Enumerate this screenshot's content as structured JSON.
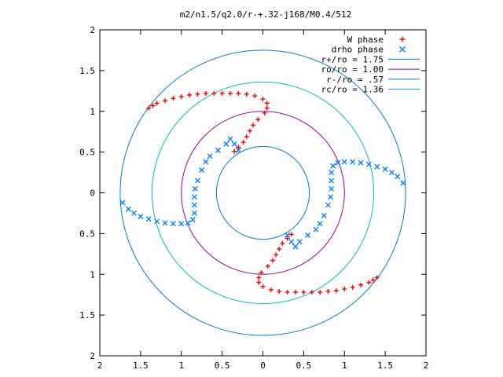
{
  "chart_data": {
    "type": "scatter",
    "title": "m2/n1.5/q2.0/r-+.32-j168/M0.4/512",
    "xlim": [
      -2,
      2
    ],
    "ylim": [
      -2,
      2
    ],
    "x_tick_values": [
      -2,
      -1.5,
      -1,
      -0.5,
      0,
      0.5,
      1,
      1.5,
      2
    ],
    "x_tick_labels": [
      "2",
      "1.5",
      "1",
      "0.5",
      "0",
      "0.5",
      "1",
      "1.5",
      "2"
    ],
    "y_tick_values": [
      2,
      1.5,
      1,
      0.5,
      0,
      -0.5,
      -1,
      -1.5,
      -2
    ],
    "y_tick_labels": [
      "2",
      "1.5",
      "1",
      "0.5",
      "0",
      "0.5",
      "1",
      "1.5",
      "2"
    ],
    "grid": false,
    "legend_position": "top-right",
    "circles": [
      {
        "label": "r+/ro = 1.75",
        "radius": 1.75,
        "color": "#0080c0"
      },
      {
        "label": "ro/ro = 1.00",
        "radius": 1.0,
        "color": "#a000a0"
      },
      {
        "label": "r-/ro = .57",
        "radius": 0.57,
        "color": "#0080c0"
      },
      {
        "label": "rc/ro = 1.36",
        "radius": 1.36,
        "color": "#00c0c0"
      }
    ],
    "series": [
      {
        "name": "W phase",
        "marker": "plus",
        "color": "#ff0000",
        "points": [
          [
            1.4,
            -1.04
          ],
          [
            1.35,
            -1.07
          ],
          [
            1.3,
            -1.1
          ],
          [
            1.2,
            -1.13
          ],
          [
            1.1,
            -1.16
          ],
          [
            1.0,
            -1.18
          ],
          [
            0.9,
            -1.2
          ],
          [
            0.8,
            -1.21
          ],
          [
            0.7,
            -1.22
          ],
          [
            0.6,
            -1.22
          ],
          [
            0.5,
            -1.22
          ],
          [
            0.4,
            -1.22
          ],
          [
            0.3,
            -1.22
          ],
          [
            0.2,
            -1.21
          ],
          [
            0.1,
            -1.19
          ],
          [
            0.0,
            -1.15
          ],
          [
            -0.05,
            -1.1
          ],
          [
            -0.05,
            -1.04
          ],
          [
            -0.02,
            -0.98
          ],
          [
            0.06,
            -0.9
          ],
          [
            0.12,
            -0.83
          ],
          [
            0.16,
            -0.76
          ],
          [
            0.2,
            -0.69
          ],
          [
            0.24,
            -0.62
          ],
          [
            0.3,
            -0.56
          ],
          [
            0.35,
            -0.51
          ],
          [
            -1.4,
            1.04
          ],
          [
            -1.35,
            1.07
          ],
          [
            -1.3,
            1.1
          ],
          [
            -1.2,
            1.13
          ],
          [
            -1.1,
            1.16
          ],
          [
            -1.0,
            1.18
          ],
          [
            -0.9,
            1.2
          ],
          [
            -0.8,
            1.21
          ],
          [
            -0.7,
            1.22
          ],
          [
            -0.6,
            1.22
          ],
          [
            -0.5,
            1.22
          ],
          [
            -0.4,
            1.22
          ],
          [
            -0.3,
            1.22
          ],
          [
            -0.2,
            1.21
          ],
          [
            -0.1,
            1.19
          ],
          [
            0.0,
            1.15
          ],
          [
            0.05,
            1.1
          ],
          [
            0.05,
            1.04
          ],
          [
            0.02,
            0.98
          ],
          [
            -0.06,
            0.9
          ],
          [
            -0.12,
            0.83
          ],
          [
            -0.16,
            0.76
          ],
          [
            -0.2,
            0.69
          ],
          [
            -0.24,
            0.62
          ],
          [
            -0.3,
            0.56
          ],
          [
            -0.35,
            0.51
          ]
        ]
      },
      {
        "name": "drho phase",
        "marker": "cross",
        "color": "#0080ff",
        "points": [
          [
            1.72,
            0.12
          ],
          [
            1.65,
            0.2
          ],
          [
            1.58,
            0.25
          ],
          [
            1.5,
            0.29
          ],
          [
            1.4,
            0.32
          ],
          [
            1.3,
            0.35
          ],
          [
            1.2,
            0.37
          ],
          [
            1.1,
            0.38
          ],
          [
            1.0,
            0.38
          ],
          [
            0.92,
            0.37
          ],
          [
            0.86,
            0.33
          ],
          [
            0.84,
            0.25
          ],
          [
            0.84,
            0.15
          ],
          [
            0.84,
            0.05
          ],
          [
            0.83,
            -0.05
          ],
          [
            0.8,
            -0.15
          ],
          [
            0.75,
            -0.28
          ],
          [
            0.7,
            -0.38
          ],
          [
            0.65,
            -0.45
          ],
          [
            0.55,
            -0.52
          ],
          [
            0.45,
            -0.6
          ],
          [
            0.4,
            -0.66
          ],
          [
            0.35,
            -0.6
          ],
          [
            0.3,
            -0.52
          ],
          [
            -1.72,
            -0.12
          ],
          [
            -1.65,
            -0.2
          ],
          [
            -1.58,
            -0.25
          ],
          [
            -1.5,
            -0.29
          ],
          [
            -1.4,
            -0.32
          ],
          [
            -1.3,
            -0.35
          ],
          [
            -1.2,
            -0.37
          ],
          [
            -1.1,
            -0.38
          ],
          [
            -1.0,
            -0.38
          ],
          [
            -0.92,
            -0.37
          ],
          [
            -0.86,
            -0.33
          ],
          [
            -0.84,
            -0.25
          ],
          [
            -0.84,
            -0.15
          ],
          [
            -0.84,
            -0.05
          ],
          [
            -0.83,
            0.05
          ],
          [
            -0.8,
            0.15
          ],
          [
            -0.75,
            0.28
          ],
          [
            -0.7,
            0.38
          ],
          [
            -0.65,
            0.45
          ],
          [
            -0.55,
            0.52
          ],
          [
            -0.45,
            0.6
          ],
          [
            -0.4,
            0.66
          ],
          [
            -0.35,
            0.6
          ],
          [
            -0.3,
            0.52
          ]
        ]
      }
    ]
  }
}
